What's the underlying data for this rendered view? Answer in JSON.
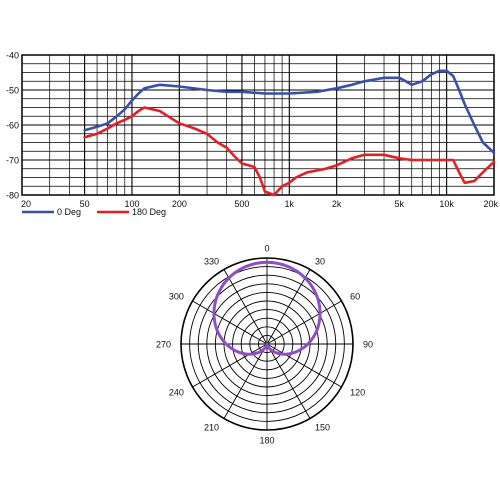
{
  "chart_data": [
    {
      "type": "line",
      "title": "",
      "xlabel": "",
      "ylabel": "",
      "x_scale": "log",
      "xlim": [
        20,
        20000
      ],
      "ylim": [
        -80,
        -40
      ],
      "grid": true,
      "legend_position": "bottom-left",
      "x_tick_labels": [
        {
          "value": 20,
          "label": "20"
        },
        {
          "value": 50,
          "label": "50"
        },
        {
          "value": 100,
          "label": "100"
        },
        {
          "value": 200,
          "label": "200"
        },
        {
          "value": 500,
          "label": "500"
        },
        {
          "value": 1000,
          "label": "1k"
        },
        {
          "value": 2000,
          "label": "2k"
        },
        {
          "value": 5000,
          "label": "5k"
        },
        {
          "value": 10000,
          "label": "10k"
        },
        {
          "value": 20000,
          "label": "20k"
        }
      ],
      "y_tick_labels": [
        {
          "value": -40,
          "label": "-40"
        },
        {
          "value": -50,
          "label": "-50"
        },
        {
          "value": -60,
          "label": "-60"
        },
        {
          "value": -70,
          "label": "-70"
        },
        {
          "value": -80,
          "label": "-80"
        }
      ],
      "series": [
        {
          "name": "0 Deg",
          "color": "#3a4fa8",
          "x": [
            50,
            60,
            70,
            80,
            90,
            100,
            110,
            120,
            150,
            200,
            300,
            400,
            500,
            700,
            1000,
            1500,
            2000,
            2500,
            3000,
            4000,
            5000,
            5500,
            6000,
            7000,
            8000,
            9000,
            10000,
            11000,
            12000,
            13000,
            15000,
            17000,
            19000,
            20000
          ],
          "y": [
            -61.5,
            -60.5,
            -59.5,
            -57.5,
            -55.5,
            -53,
            -51,
            -49.5,
            -48.5,
            -49,
            -50,
            -50.5,
            -50.5,
            -51,
            -51,
            -50.5,
            -49.5,
            -48.5,
            -47.5,
            -46.5,
            -46.5,
            -47.5,
            -48.5,
            -47.5,
            -45.5,
            -44.5,
            -44.5,
            -46,
            -50,
            -54,
            -60,
            -65,
            -67,
            -68
          ]
        },
        {
          "name": "180 Deg",
          "color": "#e41e26",
          "x": [
            50,
            60,
            70,
            80,
            90,
            100,
            110,
            120,
            150,
            200,
            250,
            300,
            350,
            400,
            450,
            500,
            550,
            600,
            650,
            700,
            800,
            900,
            1000,
            1100,
            1300,
            1500,
            1700,
            2000,
            2500,
            3000,
            3500,
            4000,
            5000,
            6000,
            7000,
            8000,
            9000,
            10000,
            11000,
            12000,
            13000,
            15000,
            17000,
            20000
          ],
          "y": [
            -63.5,
            -62.5,
            -61,
            -59.5,
            -58.5,
            -57.5,
            -56,
            -55,
            -56,
            -59.5,
            -61,
            -62.5,
            -65,
            -66.5,
            -69,
            -71,
            -71.5,
            -72,
            -75,
            -79,
            -80,
            -77.5,
            -76.5,
            -75,
            -73.5,
            -73,
            -72.5,
            -71.5,
            -69.5,
            -68.5,
            -68.5,
            -68.5,
            -69.5,
            -70,
            -70,
            -70,
            -70,
            -70,
            -70,
            -73.5,
            -76.5,
            -76,
            -73.5,
            -70.5
          ]
        }
      ],
      "legend": [
        {
          "label": "0 Deg",
          "color": "#3a4fa8"
        },
        {
          "label": "180 Deg",
          "color": "#e41e26"
        }
      ]
    },
    {
      "type": "polar",
      "pattern": "cardioid",
      "angle_labels": [
        "0",
        "30",
        "60",
        "90",
        "120",
        "150",
        "180",
        "210",
        "240",
        "270",
        "300",
        "330"
      ],
      "rings": 10,
      "line_color": "#8e4ec6",
      "response": {
        "angles": [
          0,
          30,
          60,
          90,
          120,
          150,
          180,
          210,
          240,
          270,
          300,
          330
        ],
        "values": [
          1.0,
          0.93,
          0.75,
          0.5,
          0.25,
          0.07,
          0.0,
          0.07,
          0.25,
          0.5,
          0.75,
          0.93
        ]
      }
    }
  ]
}
